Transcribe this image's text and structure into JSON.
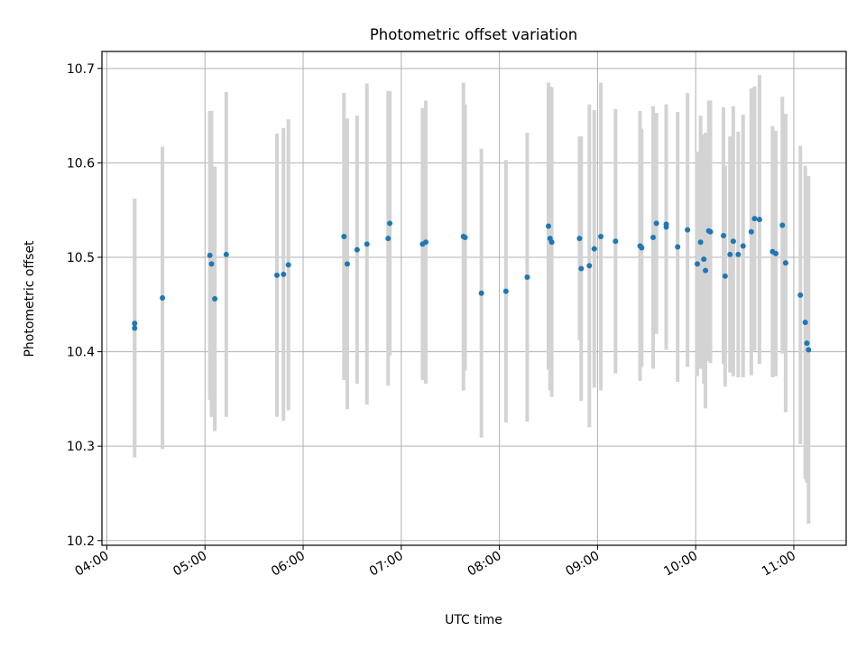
{
  "chart_data": {
    "type": "scatter",
    "title": "Photometric offset variation",
    "xlabel": "UTC time",
    "ylabel": "Photometric offset",
    "xlim": [
      "03:57",
      "11:32"
    ],
    "ylim": [
      10.195,
      10.718
    ],
    "x_ticks": [
      "04:00",
      "05:00",
      "06:00",
      "07:00",
      "08:00",
      "09:00",
      "10:00",
      "11:00"
    ],
    "y_ticks": [
      10.2,
      10.3,
      10.4,
      10.5,
      10.6,
      10.7
    ],
    "grid": true,
    "point_color": "#1f77b4",
    "errorbar_color": "#d3d3d3",
    "series": [
      {
        "x": [
          "04:17",
          "04:17",
          "04:34",
          "05:03",
          "05:04",
          "05:06",
          "05:13",
          "05:44",
          "05:48",
          "05:51",
          "06:25",
          "06:27",
          "06:33",
          "06:39",
          "06:52",
          "06:53",
          "07:13",
          "07:15",
          "07:38",
          "07:39",
          "07:49",
          "08:04",
          "08:17",
          "08:30",
          "08:31",
          "08:32",
          "08:49",
          "08:50",
          "08:55",
          "08:58",
          "09:02",
          "09:11",
          "09:26",
          "09:27",
          "09:34",
          "09:36",
          "09:42",
          "09:42",
          "09:49",
          "09:55",
          "10:01",
          "10:03",
          "10:05",
          "10:06",
          "10:08",
          "10:09",
          "10:17",
          "10:18",
          "10:21",
          "10:23",
          "10:26",
          "10:29",
          "10:34",
          "10:36",
          "10:39",
          "10:47",
          "10:49",
          "10:53",
          "10:55",
          "11:04",
          "11:07",
          "11:08",
          "11:09"
        ],
        "y": [
          10.43,
          10.425,
          10.457,
          10.502,
          10.493,
          10.456,
          10.503,
          10.481,
          10.482,
          10.492,
          10.522,
          10.493,
          10.508,
          10.514,
          10.52,
          10.536,
          10.514,
          10.516,
          10.522,
          10.521,
          10.462,
          10.464,
          10.479,
          10.533,
          10.52,
          10.516,
          10.52,
          10.488,
          10.491,
          10.509,
          10.522,
          10.517,
          10.512,
          10.51,
          10.521,
          10.536,
          10.535,
          10.532,
          10.511,
          10.529,
          10.493,
          10.516,
          10.498,
          10.486,
          10.528,
          10.527,
          10.523,
          10.48,
          10.503,
          10.517,
          10.503,
          10.512,
          10.527,
          10.541,
          10.54,
          10.506,
          10.504,
          10.534,
          10.494,
          10.46,
          10.431,
          10.409,
          10.402
        ],
        "yerr": [
          0.132,
          0.137,
          0.16,
          0.153,
          0.162,
          0.14,
          0.172,
          0.15,
          0.155,
          0.154,
          0.152,
          0.154,
          0.142,
          0.17,
          0.156,
          0.14,
          0.144,
          0.15,
          0.163,
          0.141,
          0.153,
          0.139,
          0.153,
          0.152,
          0.161,
          0.164,
          0.108,
          0.14,
          0.171,
          0.147,
          0.163,
          0.14,
          0.143,
          0.126,
          0.139,
          0.117,
          0.127,
          0.13,
          0.143,
          0.145,
          0.119,
          0.134,
          0.132,
          0.146,
          0.138,
          0.139,
          0.136,
          0.117,
          0.125,
          0.143,
          0.13,
          0.139,
          0.152,
          0.14,
          0.153,
          0.133,
          0.13,
          0.136,
          0.158,
          0.158,
          0.166,
          0.148,
          0.184
        ]
      }
    ]
  }
}
